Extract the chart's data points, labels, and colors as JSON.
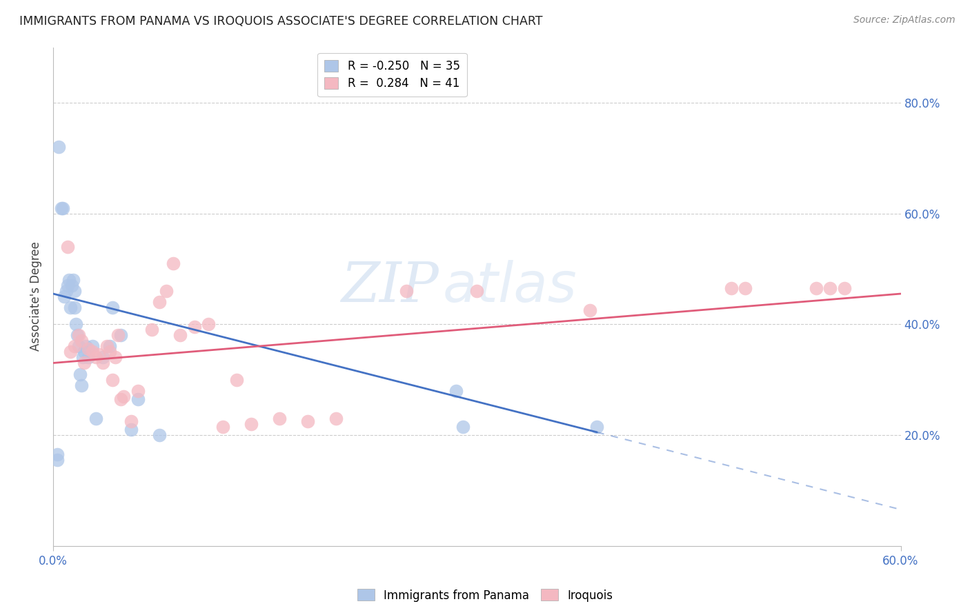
{
  "title": "IMMIGRANTS FROM PANAMA VS IROQUOIS ASSOCIATE'S DEGREE CORRELATION CHART",
  "source": "Source: ZipAtlas.com",
  "ylabel_left": "Associate's Degree",
  "blue_R": -0.25,
  "blue_N": 35,
  "pink_R": 0.284,
  "pink_N": 41,
  "legend_label_blue": "Immigrants from Panama",
  "legend_label_pink": "Iroquois",
  "blue_color": "#aec6e8",
  "pink_color": "#f4b8c1",
  "blue_line_color": "#4472C4",
  "pink_line_color": "#E05C7A",
  "xmin": 0.0,
  "xmax": 0.6,
  "ymin": 0.0,
  "ymax": 0.9,
  "right_ytick_values": [
    0.2,
    0.4,
    0.6,
    0.8
  ],
  "right_ytick_labels": [
    "20.0%",
    "40.0%",
    "60.0%",
    "80.0%"
  ],
  "grid_color": "#CCCCCC",
  "blue_scatter_x": [
    0.003,
    0.003,
    0.004,
    0.006,
    0.007,
    0.008,
    0.009,
    0.01,
    0.011,
    0.012,
    0.013,
    0.014,
    0.015,
    0.015,
    0.016,
    0.017,
    0.018,
    0.019,
    0.02,
    0.021,
    0.022,
    0.023,
    0.025,
    0.028,
    0.03,
    0.035,
    0.04,
    0.042,
    0.048,
    0.055,
    0.06,
    0.075,
    0.285,
    0.29,
    0.385
  ],
  "blue_scatter_y": [
    0.155,
    0.165,
    0.72,
    0.61,
    0.61,
    0.45,
    0.46,
    0.47,
    0.48,
    0.43,
    0.47,
    0.48,
    0.46,
    0.43,
    0.4,
    0.38,
    0.36,
    0.31,
    0.29,
    0.34,
    0.35,
    0.36,
    0.34,
    0.36,
    0.23,
    0.34,
    0.36,
    0.43,
    0.38,
    0.21,
    0.265,
    0.2,
    0.28,
    0.215,
    0.215
  ],
  "pink_scatter_x": [
    0.01,
    0.012,
    0.015,
    0.018,
    0.02,
    0.022,
    0.025,
    0.028,
    0.03,
    0.032,
    0.035,
    0.038,
    0.04,
    0.042,
    0.044,
    0.046,
    0.048,
    0.05,
    0.055,
    0.06,
    0.07,
    0.075,
    0.08,
    0.085,
    0.09,
    0.1,
    0.11,
    0.12,
    0.13,
    0.14,
    0.16,
    0.18,
    0.2,
    0.25,
    0.3,
    0.38,
    0.48,
    0.49,
    0.54,
    0.55,
    0.56
  ],
  "pink_scatter_y": [
    0.54,
    0.35,
    0.36,
    0.38,
    0.37,
    0.33,
    0.355,
    0.35,
    0.34,
    0.345,
    0.33,
    0.36,
    0.35,
    0.3,
    0.34,
    0.38,
    0.265,
    0.27,
    0.225,
    0.28,
    0.39,
    0.44,
    0.46,
    0.51,
    0.38,
    0.395,
    0.4,
    0.215,
    0.3,
    0.22,
    0.23,
    0.225,
    0.23,
    0.46,
    0.46,
    0.425,
    0.465,
    0.465,
    0.465,
    0.465,
    0.465
  ],
  "watermark_zip": "ZIP",
  "watermark_atlas": "atlas",
  "blue_trend_x_start": 0.0,
  "blue_trend_x_solid_end": 0.385,
  "blue_trend_x_dashed_end": 0.6,
  "blue_trend_y_start": 0.455,
  "blue_trend_y_solid_end": 0.205,
  "pink_trend_x_start": 0.0,
  "pink_trend_x_end": 0.6,
  "pink_trend_y_start": 0.33,
  "pink_trend_y_end": 0.455
}
